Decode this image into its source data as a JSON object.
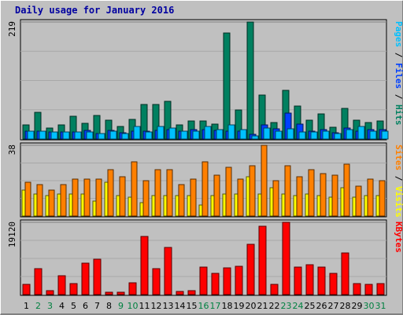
{
  "title": "Daily usage for January 2016",
  "colors": {
    "background": "#c0c0c0",
    "title": "#0000a0",
    "hits": "#008060",
    "files": "#0040ff",
    "pages": "#00c0ff",
    "visits": "#ffff00",
    "sites": "#ff8000",
    "kbytes": "#ff0000",
    "weekend_day_label": "#008040",
    "weekday_label": "#000000"
  },
  "chart_data": [
    {
      "type": "bar",
      "panel": "hits-files-pages",
      "ymax_label": "219",
      "ylim": [
        0,
        219
      ],
      "ylabel_parts": [
        {
          "text": "Pages",
          "color": "#00c0ff"
        },
        {
          "text": " / ",
          "color": "#000000"
        },
        {
          "text": "Files",
          "color": "#0040ff"
        },
        {
          "text": " / ",
          "color": "#000000"
        },
        {
          "text": "Hits",
          "color": "#008060"
        }
      ],
      "categories": [
        "1",
        "2",
        "3",
        "4",
        "5",
        "6",
        "7",
        "8",
        "9",
        "10",
        "11",
        "12",
        "13",
        "14",
        "15",
        "16",
        "17",
        "18",
        "19",
        "20",
        "21",
        "22",
        "23",
        "24",
        "25",
        "26",
        "27",
        "28",
        "29",
        "30",
        "31"
      ],
      "series": [
        {
          "name": "Hits",
          "color": "#008060",
          "values": [
            27,
            50,
            21,
            26,
            42,
            29,
            44,
            35,
            23,
            37,
            64,
            64,
            70,
            27,
            34,
            34,
            28,
            199,
            55,
            219,
            83,
            31,
            91,
            62,
            35,
            47,
            22,
            58,
            35,
            31,
            34
          ]
        },
        {
          "name": "Files",
          "color": "#0040ff",
          "values": [
            14,
            15,
            13,
            13,
            13,
            16,
            11,
            16,
            12,
            14,
            15,
            16,
            17,
            15,
            17,
            17,
            16,
            14,
            15,
            9,
            27,
            19,
            48,
            28,
            14,
            17,
            12,
            21,
            14,
            18,
            17
          ]
        },
        {
          "name": "Pages",
          "color": "#00c0ff",
          "values": [
            14,
            15,
            13,
            13,
            13,
            13,
            11,
            15,
            10,
            23,
            13,
            23,
            20,
            15,
            15,
            24,
            18,
            26,
            17,
            6,
            20,
            15,
            19,
            13,
            13,
            14,
            10,
            18,
            23,
            15,
            15
          ]
        }
      ]
    },
    {
      "type": "bar",
      "panel": "visits-sites",
      "ymax_label": "38",
      "ylim": [
        0,
        38
      ],
      "ylabel_parts": [
        {
          "text": "Sites",
          "color": "#ff8000"
        },
        {
          "text": " / ",
          "color": "#000000"
        },
        {
          "text": "Visits",
          "color": "#ffff00"
        }
      ],
      "categories": [
        "1",
        "2",
        "3",
        "4",
        "5",
        "6",
        "7",
        "8",
        "9",
        "10",
        "11",
        "12",
        "13",
        "14",
        "15",
        "16",
        "17",
        "18",
        "19",
        "20",
        "21",
        "22",
        "23",
        "24",
        "25",
        "26",
        "27",
        "28",
        "29",
        "30",
        "31"
      ],
      "series": [
        {
          "name": "Visits",
          "color": "#ffff00",
          "values": [
            14,
            12,
            11,
            12,
            12,
            12,
            8,
            18,
            11,
            10,
            7,
            11,
            11,
            11,
            11,
            6,
            11,
            12,
            12,
            21,
            12,
            15,
            12,
            11,
            12,
            11,
            10,
            15,
            10,
            11,
            11
          ]
        },
        {
          "name": "Sites",
          "color": "#ff8000",
          "values": [
            18,
            17,
            14,
            17,
            20,
            20,
            20,
            25,
            21,
            29,
            19,
            25,
            25,
            17,
            20,
            29,
            22,
            26,
            20,
            27,
            38,
            19,
            27,
            21,
            25,
            23,
            22,
            28,
            16,
            20,
            19
          ]
        }
      ]
    },
    {
      "type": "bar",
      "panel": "kbytes",
      "ymax_label": "19120",
      "ylim": [
        0,
        19120
      ],
      "ylabel_parts": [
        {
          "text": "KBytes",
          "color": "#ff0000"
        }
      ],
      "categories": [
        "1",
        "2",
        "3",
        "4",
        "5",
        "6",
        "7",
        "8",
        "9",
        "10",
        "11",
        "12",
        "13",
        "14",
        "15",
        "16",
        "17",
        "18",
        "19",
        "20",
        "21",
        "22",
        "23",
        "24",
        "25",
        "26",
        "27",
        "28",
        "29",
        "30",
        "31"
      ],
      "series": [
        {
          "name": "KBytes",
          "color": "#ff0000",
          "values": [
            2700,
            6800,
            1000,
            5000,
            3000,
            8400,
            9300,
            600,
            600,
            3100,
            15300,
            6800,
            12400,
            900,
            1100,
            7200,
            5600,
            7100,
            7400,
            13400,
            18100,
            2700,
            19120,
            7200,
            7800,
            7200,
            5600,
            11100,
            2900,
            2600,
            3000
          ]
        }
      ]
    }
  ]
}
